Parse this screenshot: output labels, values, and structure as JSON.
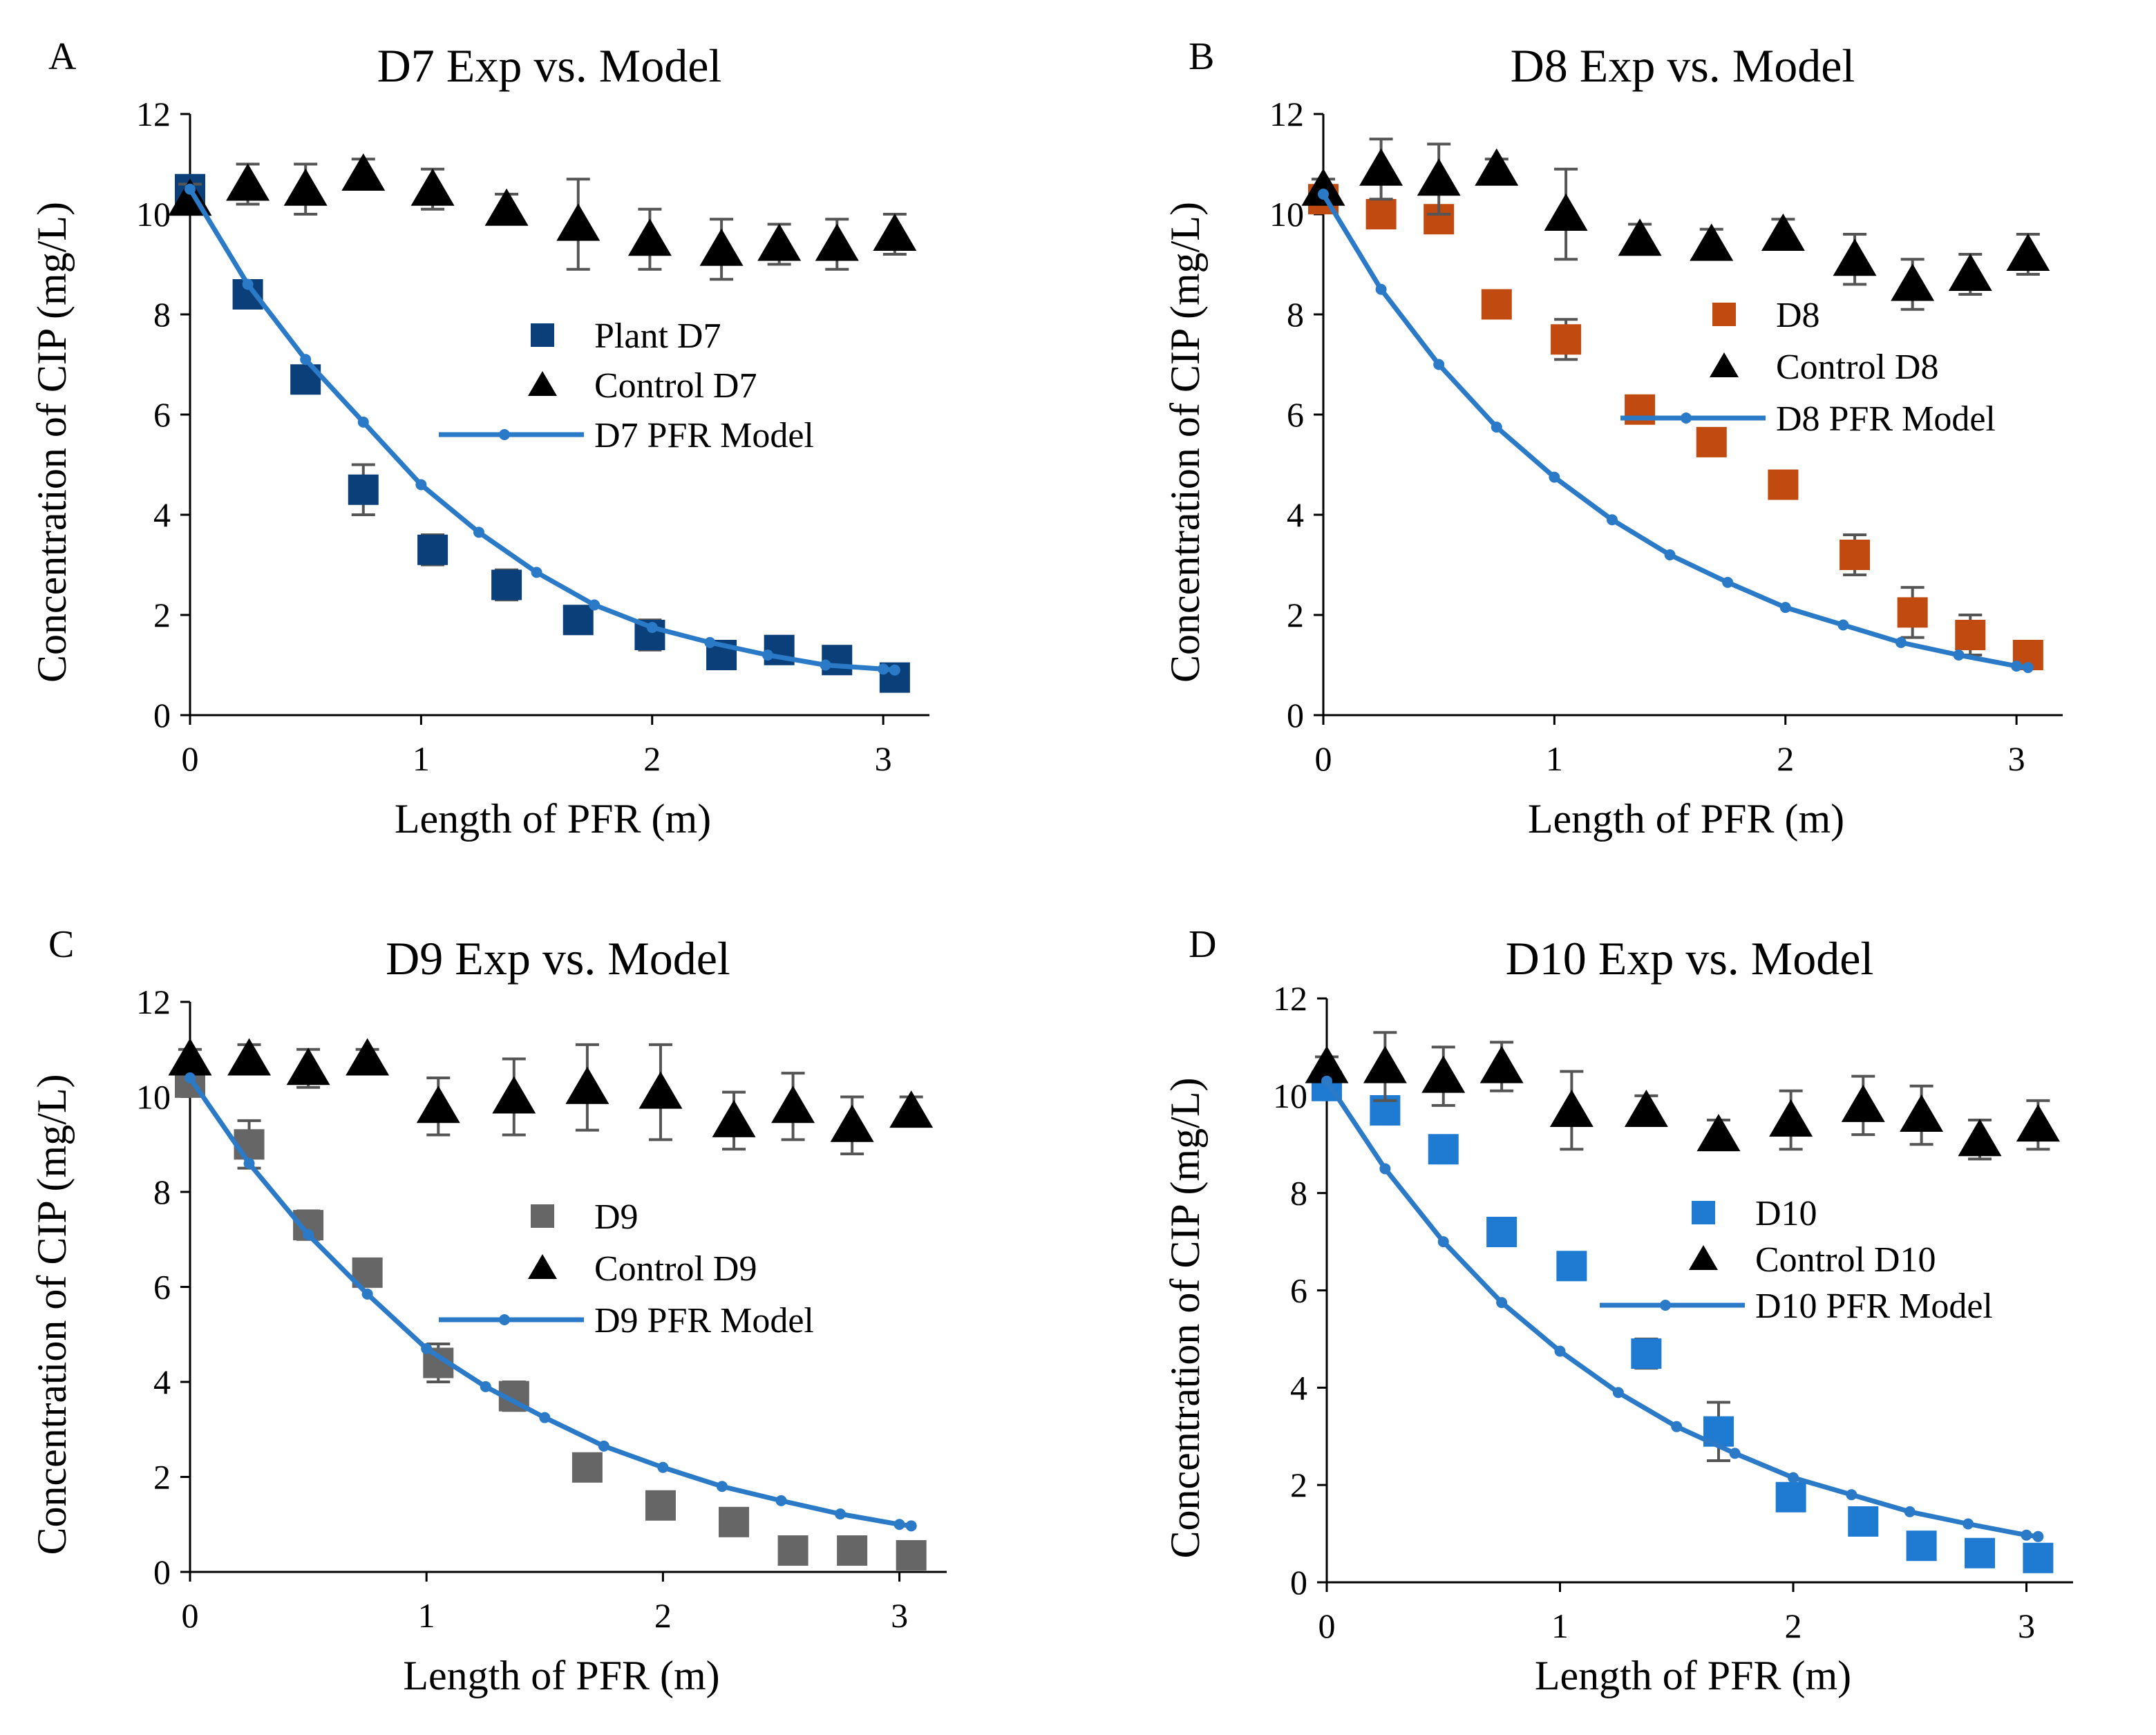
{
  "colors": {
    "model_line": "#2A7AC7",
    "control": "#000000",
    "error_bar": "#555555",
    "axis": "#000000"
  },
  "chart_data": [
    {
      "panel_label": "A",
      "type": "scatter",
      "title": "D7 Exp vs. Model",
      "xlabel": "Length of PFR (m)",
      "ylabel": "Concentration of CIP (mg/L)",
      "xlim": [
        0,
        3.2
      ],
      "ylim": [
        0,
        12
      ],
      "xticks": [
        "0",
        "1",
        "2",
        "3"
      ],
      "yticks": [
        "0",
        "2",
        "4",
        "6",
        "8",
        "10",
        "12"
      ],
      "legend_position": "center-right",
      "series": [
        {
          "name": "Plant D7",
          "kind": "square",
          "color": "#0B3F7A",
          "x": [
            0,
            0.25,
            0.5,
            0.75,
            1.05,
            1.37,
            1.68,
            1.99,
            2.3,
            2.55,
            2.8,
            3.05
          ],
          "y": [
            10.5,
            8.4,
            6.7,
            4.5,
            3.3,
            2.6,
            1.9,
            1.6,
            1.2,
            1.3,
            1.1,
            0.75
          ],
          "err": [
            0.2,
            0.1,
            0.1,
            0.5,
            0.3,
            0.3,
            0.1,
            0.3,
            0.1,
            0.1,
            0.1,
            0.1
          ]
        },
        {
          "name": "Control D7",
          "kind": "triangle",
          "color": "#000000",
          "x": [
            0,
            0.25,
            0.5,
            0.75,
            1.05,
            1.37,
            1.68,
            1.99,
            2.3,
            2.55,
            2.8,
            3.05
          ],
          "y": [
            10.3,
            10.6,
            10.5,
            10.8,
            10.5,
            10.1,
            9.8,
            9.5,
            9.3,
            9.4,
            9.4,
            9.6
          ],
          "err": [
            0.3,
            0.4,
            0.5,
            0.3,
            0.4,
            0.3,
            0.9,
            0.6,
            0.6,
            0.4,
            0.5,
            0.4
          ]
        },
        {
          "name": "D7 PFR Model",
          "kind": "line",
          "color": "#2A7AC7",
          "x": [
            0,
            0.25,
            0.5,
            0.75,
            1,
            1.25,
            1.5,
            1.75,
            2,
            2.25,
            2.5,
            2.75,
            3,
            3.05
          ],
          "y": [
            10.5,
            8.6,
            7.1,
            5.85,
            4.6,
            3.65,
            2.85,
            2.2,
            1.75,
            1.45,
            1.2,
            1.0,
            0.92,
            0.9
          ]
        }
      ]
    },
    {
      "panel_label": "B",
      "type": "scatter",
      "title": "D8 Exp vs. Model",
      "xlabel": "Length of PFR (m)",
      "ylabel": "Concentration of CIP (mg/L)",
      "xlim": [
        0,
        3.2
      ],
      "ylim": [
        0,
        12
      ],
      "xticks": [
        "0",
        "1",
        "2",
        "3"
      ],
      "yticks": [
        "0",
        "2",
        "4",
        "6",
        "8",
        "10",
        "12"
      ],
      "legend_position": "center-right",
      "series": [
        {
          "name": "D8",
          "kind": "square",
          "color": "#C04A10",
          "x": [
            0,
            0.25,
            0.5,
            0.75,
            1.05,
            1.37,
            1.68,
            1.99,
            2.3,
            2.55,
            2.8,
            3.05
          ],
          "y": [
            10.3,
            10.0,
            9.9,
            8.2,
            7.5,
            6.1,
            5.45,
            4.6,
            3.2,
            2.05,
            1.6,
            1.2
          ],
          "err": [
            0.1,
            0.1,
            0.1,
            0.1,
            0.4,
            0.2,
            0.1,
            0.1,
            0.4,
            0.5,
            0.4,
            0.2
          ]
        },
        {
          "name": "Control D8",
          "kind": "triangle",
          "color": "#000000",
          "x": [
            0,
            0.25,
            0.5,
            0.75,
            1.05,
            1.37,
            1.68,
            1.99,
            2.3,
            2.55,
            2.8,
            3.05
          ],
          "y": [
            10.5,
            10.9,
            10.7,
            10.9,
            10.0,
            9.5,
            9.4,
            9.6,
            9.1,
            8.6,
            8.8,
            9.2
          ],
          "err": [
            0.2,
            0.6,
            0.7,
            0.2,
            0.9,
            0.3,
            0.3,
            0.3,
            0.5,
            0.5,
            0.4,
            0.4
          ]
        },
        {
          "name": "D8 PFR Model",
          "kind": "line",
          "color": "#2A7AC7",
          "x": [
            0,
            0.25,
            0.5,
            0.75,
            1,
            1.25,
            1.5,
            1.75,
            2,
            2.25,
            2.5,
            2.75,
            3,
            3.05
          ],
          "y": [
            10.4,
            8.5,
            7.0,
            5.75,
            4.75,
            3.9,
            3.2,
            2.65,
            2.15,
            1.8,
            1.45,
            1.2,
            0.98,
            0.95
          ]
        }
      ]
    },
    {
      "panel_label": "C",
      "type": "scatter",
      "title": "D9 Exp vs. Model",
      "xlabel": "Length of PFR (m)",
      "ylabel": "Concentration of CIP (mg/L)",
      "xlim": [
        0,
        3.2
      ],
      "ylim": [
        0,
        12
      ],
      "xticks": [
        "0",
        "1",
        "2",
        "3"
      ],
      "yticks": [
        "0",
        "2",
        "4",
        "6",
        "8",
        "10",
        "12"
      ],
      "legend_position": "center-right",
      "series": [
        {
          "name": "D9",
          "kind": "square",
          "color": "#666666",
          "x": [
            0,
            0.25,
            0.5,
            0.75,
            1.05,
            1.37,
            1.68,
            1.99,
            2.3,
            2.55,
            2.8,
            3.05
          ],
          "y": [
            10.3,
            9.0,
            7.3,
            6.3,
            4.4,
            3.7,
            2.2,
            1.4,
            1.05,
            0.45,
            0.45,
            0.35
          ],
          "err": [
            0.1,
            0.5,
            0.3,
            0.2,
            0.4,
            0.3,
            0.1,
            0.1,
            0.1,
            0.1,
            0.1,
            0.1
          ]
        },
        {
          "name": "Control D9",
          "kind": "triangle",
          "color": "#000000",
          "x": [
            0,
            0.25,
            0.5,
            0.75,
            1.05,
            1.37,
            1.68,
            1.99,
            2.3,
            2.55,
            2.8,
            3.05
          ],
          "y": [
            10.8,
            10.8,
            10.6,
            10.8,
            9.8,
            10.0,
            10.2,
            10.1,
            9.5,
            9.8,
            9.4,
            9.7
          ],
          "err": [
            0.2,
            0.3,
            0.4,
            0.2,
            0.6,
            0.8,
            0.9,
            1.0,
            0.6,
            0.7,
            0.6,
            0.3
          ]
        },
        {
          "name": "D9 PFR Model",
          "kind": "line",
          "color": "#2A7AC7",
          "x": [
            0,
            0.25,
            0.5,
            0.75,
            1,
            1.25,
            1.5,
            1.75,
            2,
            2.25,
            2.5,
            2.75,
            3,
            3.05
          ],
          "y": [
            10.4,
            8.6,
            7.1,
            5.85,
            4.7,
            3.9,
            3.25,
            2.65,
            2.2,
            1.8,
            1.5,
            1.22,
            1.0,
            0.97
          ]
        }
      ]
    },
    {
      "panel_label": "D",
      "type": "scatter",
      "title": "D10 Exp vs. Model",
      "xlabel": "Length of PFR (m)",
      "ylabel": "Concentration of CIP (mg/L)",
      "xlim": [
        0,
        3.2
      ],
      "ylim": [
        0,
        12
      ],
      "xticks": [
        "0",
        "1",
        "2",
        "3"
      ],
      "yticks": [
        "0",
        "2",
        "4",
        "6",
        "8",
        "10",
        "12"
      ],
      "legend_position": "center-right",
      "series": [
        {
          "name": "D10",
          "kind": "square",
          "color": "#1F7BD2",
          "x": [
            0,
            0.25,
            0.5,
            0.75,
            1.05,
            1.37,
            1.68,
            1.99,
            2.3,
            2.55,
            2.8,
            3.05
          ],
          "y": [
            10.2,
            9.7,
            8.9,
            7.2,
            6.5,
            4.7,
            3.1,
            1.75,
            1.25,
            0.75,
            0.6,
            0.5
          ],
          "err": [
            0.1,
            0.2,
            0.1,
            0.1,
            0.1,
            0.3,
            0.6,
            0.2,
            0.1,
            0.1,
            0.1,
            0.2
          ]
        },
        {
          "name": "Control D10",
          "kind": "triangle",
          "color": "#000000",
          "x": [
            0,
            0.25,
            0.5,
            0.75,
            1.05,
            1.37,
            1.68,
            1.99,
            2.3,
            2.55,
            2.8,
            3.05
          ],
          "y": [
            10.6,
            10.6,
            10.4,
            10.6,
            9.7,
            9.7,
            9.2,
            9.5,
            9.8,
            9.6,
            9.1,
            9.4
          ],
          "err": [
            0.2,
            0.7,
            0.6,
            0.5,
            0.8,
            0.3,
            0.3,
            0.6,
            0.6,
            0.6,
            0.4,
            0.5
          ]
        },
        {
          "name": "D10 PFR Model",
          "kind": "line",
          "color": "#2A7AC7",
          "x": [
            0,
            0.25,
            0.5,
            0.75,
            1,
            1.25,
            1.5,
            1.75,
            2,
            2.25,
            2.5,
            2.75,
            3,
            3.05
          ],
          "y": [
            10.3,
            8.5,
            7.0,
            5.75,
            4.75,
            3.9,
            3.2,
            2.65,
            2.15,
            1.8,
            1.45,
            1.2,
            0.97,
            0.94
          ]
        }
      ]
    }
  ]
}
